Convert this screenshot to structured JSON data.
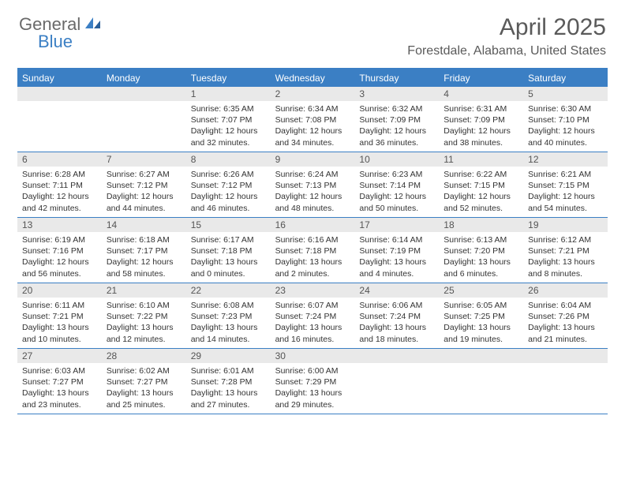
{
  "logo": {
    "general": "General",
    "blue": "Blue"
  },
  "title": "April 2025",
  "location": "Forestdale, Alabama, United States",
  "colors": {
    "brand_blue": "#3b7fc4",
    "header_grey": "#6a6a6a",
    "daynum_bg": "#e9e9e9",
    "text": "#333333"
  },
  "dow": [
    "Sunday",
    "Monday",
    "Tuesday",
    "Wednesday",
    "Thursday",
    "Friday",
    "Saturday"
  ],
  "weeks": [
    [
      null,
      null,
      {
        "n": "1",
        "sr": "6:35 AM",
        "ss": "7:07 PM",
        "dl": "12 hours and 32 minutes."
      },
      {
        "n": "2",
        "sr": "6:34 AM",
        "ss": "7:08 PM",
        "dl": "12 hours and 34 minutes."
      },
      {
        "n": "3",
        "sr": "6:32 AM",
        "ss": "7:09 PM",
        "dl": "12 hours and 36 minutes."
      },
      {
        "n": "4",
        "sr": "6:31 AM",
        "ss": "7:09 PM",
        "dl": "12 hours and 38 minutes."
      },
      {
        "n": "5",
        "sr": "6:30 AM",
        "ss": "7:10 PM",
        "dl": "12 hours and 40 minutes."
      }
    ],
    [
      {
        "n": "6",
        "sr": "6:28 AM",
        "ss": "7:11 PM",
        "dl": "12 hours and 42 minutes."
      },
      {
        "n": "7",
        "sr": "6:27 AM",
        "ss": "7:12 PM",
        "dl": "12 hours and 44 minutes."
      },
      {
        "n": "8",
        "sr": "6:26 AM",
        "ss": "7:12 PM",
        "dl": "12 hours and 46 minutes."
      },
      {
        "n": "9",
        "sr": "6:24 AM",
        "ss": "7:13 PM",
        "dl": "12 hours and 48 minutes."
      },
      {
        "n": "10",
        "sr": "6:23 AM",
        "ss": "7:14 PM",
        "dl": "12 hours and 50 minutes."
      },
      {
        "n": "11",
        "sr": "6:22 AM",
        "ss": "7:15 PM",
        "dl": "12 hours and 52 minutes."
      },
      {
        "n": "12",
        "sr": "6:21 AM",
        "ss": "7:15 PM",
        "dl": "12 hours and 54 minutes."
      }
    ],
    [
      {
        "n": "13",
        "sr": "6:19 AM",
        "ss": "7:16 PM",
        "dl": "12 hours and 56 minutes."
      },
      {
        "n": "14",
        "sr": "6:18 AM",
        "ss": "7:17 PM",
        "dl": "12 hours and 58 minutes."
      },
      {
        "n": "15",
        "sr": "6:17 AM",
        "ss": "7:18 PM",
        "dl": "13 hours and 0 minutes."
      },
      {
        "n": "16",
        "sr": "6:16 AM",
        "ss": "7:18 PM",
        "dl": "13 hours and 2 minutes."
      },
      {
        "n": "17",
        "sr": "6:14 AM",
        "ss": "7:19 PM",
        "dl": "13 hours and 4 minutes."
      },
      {
        "n": "18",
        "sr": "6:13 AM",
        "ss": "7:20 PM",
        "dl": "13 hours and 6 minutes."
      },
      {
        "n": "19",
        "sr": "6:12 AM",
        "ss": "7:21 PM",
        "dl": "13 hours and 8 minutes."
      }
    ],
    [
      {
        "n": "20",
        "sr": "6:11 AM",
        "ss": "7:21 PM",
        "dl": "13 hours and 10 minutes."
      },
      {
        "n": "21",
        "sr": "6:10 AM",
        "ss": "7:22 PM",
        "dl": "13 hours and 12 minutes."
      },
      {
        "n": "22",
        "sr": "6:08 AM",
        "ss": "7:23 PM",
        "dl": "13 hours and 14 minutes."
      },
      {
        "n": "23",
        "sr": "6:07 AM",
        "ss": "7:24 PM",
        "dl": "13 hours and 16 minutes."
      },
      {
        "n": "24",
        "sr": "6:06 AM",
        "ss": "7:24 PM",
        "dl": "13 hours and 18 minutes."
      },
      {
        "n": "25",
        "sr": "6:05 AM",
        "ss": "7:25 PM",
        "dl": "13 hours and 19 minutes."
      },
      {
        "n": "26",
        "sr": "6:04 AM",
        "ss": "7:26 PM",
        "dl": "13 hours and 21 minutes."
      }
    ],
    [
      {
        "n": "27",
        "sr": "6:03 AM",
        "ss": "7:27 PM",
        "dl": "13 hours and 23 minutes."
      },
      {
        "n": "28",
        "sr": "6:02 AM",
        "ss": "7:27 PM",
        "dl": "13 hours and 25 minutes."
      },
      {
        "n": "29",
        "sr": "6:01 AM",
        "ss": "7:28 PM",
        "dl": "13 hours and 27 minutes."
      },
      {
        "n": "30",
        "sr": "6:00 AM",
        "ss": "7:29 PM",
        "dl": "13 hours and 29 minutes."
      },
      null,
      null,
      null
    ]
  ],
  "labels": {
    "sunrise": "Sunrise:",
    "sunset": "Sunset:",
    "daylight": "Daylight:"
  }
}
